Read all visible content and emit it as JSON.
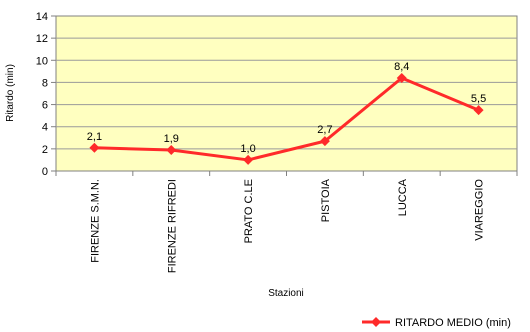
{
  "chart_data": {
    "type": "line",
    "title": "",
    "xlabel": "Stazioni",
    "ylabel": "Ritardo (min)",
    "ylim": [
      0,
      14
    ],
    "ytick_step": 2,
    "grid": true,
    "legend_position": "bottom-right",
    "plot_background": "#ffffc0",
    "series_color": "#ff2a2a",
    "categories": [
      "FIRENZE S.M.N.",
      "FIRENZE RIFREDI",
      "PRATO C.LE",
      "PISTOIA",
      "LUCCA",
      "VIAREGGIO"
    ],
    "series": [
      {
        "name": "RITARDO MEDIO (min)",
        "values": [
          2.1,
          1.9,
          1.0,
          2.7,
          8.4,
          5.5
        ],
        "data_labels": [
          "2,1",
          "1,9",
          "1,0",
          "2,7",
          "8,4",
          "5,5"
        ]
      }
    ]
  }
}
